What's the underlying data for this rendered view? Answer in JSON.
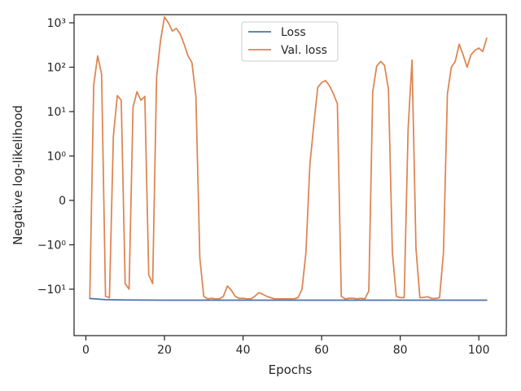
{
  "chart_data": {
    "type": "line",
    "xlabel": "Epochs",
    "ylabel": "Negative log-likelihood",
    "xlim": [
      -3,
      107
    ],
    "x_ticks": [
      0,
      20,
      40,
      60,
      80,
      100
    ],
    "y_scale": "symlog",
    "y_ticks": [
      {
        "value": 1000,
        "label": "10³"
      },
      {
        "value": 100,
        "label": "10²"
      },
      {
        "value": 10,
        "label": "10¹"
      },
      {
        "value": 1,
        "label": "10⁰"
      },
      {
        "value": 0,
        "label": "0"
      },
      {
        "value": -1,
        "label": "−10⁰"
      },
      {
        "value": -10,
        "label": "−10¹"
      }
    ],
    "legend_position": "top-center",
    "series": [
      {
        "name": "Loss",
        "color": "#4c72b0",
        "x": [
          1,
          5,
          10,
          20,
          30,
          50,
          70,
          90,
          102
        ],
        "y": [
          -16.2,
          -17.2,
          -17.5,
          -17.7,
          -17.7,
          -17.7,
          -17.7,
          -17.7,
          -17.7
        ]
      },
      {
        "name": "Val. loss",
        "color": "#dd8452",
        "x": [
          1,
          2,
          3,
          4,
          5,
          6,
          7,
          8,
          9,
          10,
          11,
          12,
          13,
          14,
          15,
          16,
          17,
          18,
          19,
          20,
          21,
          22,
          23,
          24,
          25,
          26,
          27,
          28,
          29,
          30,
          31,
          32,
          33,
          34,
          35,
          36,
          37,
          38,
          39,
          40,
          41,
          42,
          43,
          44,
          45,
          46,
          47,
          48,
          49,
          50,
          51,
          52,
          53,
          54,
          55,
          56,
          57,
          58,
          59,
          60,
          61,
          62,
          63,
          64,
          65,
          66,
          67,
          68,
          69,
          70,
          71,
          72,
          73,
          74,
          75,
          76,
          77,
          78,
          79,
          80,
          81,
          82,
          83,
          84,
          85,
          86,
          87,
          88,
          89,
          90,
          91,
          92,
          93,
          94,
          95,
          96,
          97,
          98,
          99,
          100,
          101,
          102
        ],
        "y": [
          -15.5,
          40,
          180,
          70,
          -14.5,
          -15.5,
          2.8,
          23,
          18,
          -7.5,
          -10,
          12.5,
          28,
          18,
          22,
          -4.8,
          -7.5,
          60,
          400,
          1350,
          1000,
          650,
          750,
          560,
          330,
          180,
          125,
          22,
          -2,
          -14.5,
          -16.5,
          -16,
          -16.5,
          -16.5,
          -14.5,
          -8.5,
          -10.5,
          -14.5,
          -16.2,
          -16,
          -16.5,
          -16.5,
          -14.5,
          -12,
          -13,
          -14.5,
          -15.5,
          -16.5,
          -16.5,
          -16.5,
          -16.5,
          -16.5,
          -16.5,
          -15.5,
          -10,
          -1.5,
          0.8,
          5,
          35,
          45,
          50,
          38,
          25,
          15,
          -14.5,
          -16.5,
          -16,
          -16,
          -16.5,
          -16,
          -16.5,
          -11,
          28,
          105,
          135,
          110,
          32,
          -1.5,
          -14.5,
          -15.5,
          -15.5,
          4,
          145,
          -1.2,
          -15.5,
          -15.3,
          -14.8,
          -16.2,
          -16.2,
          -15.5,
          -1.5,
          25,
          100,
          135,
          330,
          190,
          100,
          190,
          240,
          270,
          225,
          450
        ]
      }
    ]
  }
}
